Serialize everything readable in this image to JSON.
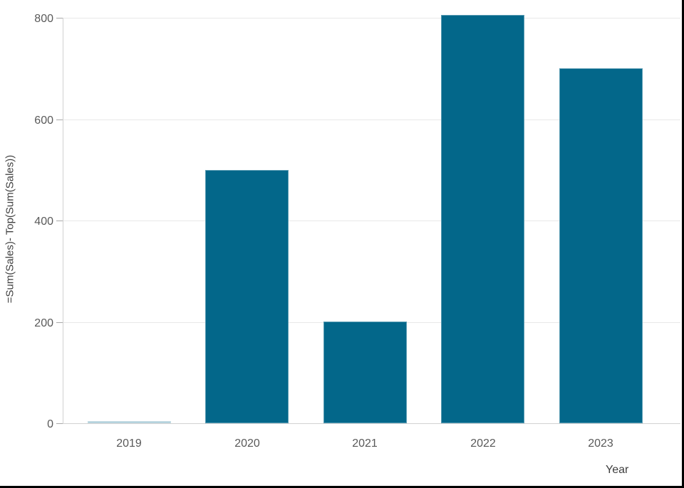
{
  "chart_data": {
    "type": "bar",
    "categories": [
      "2019",
      "2020",
      "2021",
      "2022",
      "2023"
    ],
    "values": [
      0,
      500,
      200,
      805,
      700
    ],
    "title": "",
    "xlabel": "Year",
    "ylabel": "=Sum(Sales)- Top(Sum(Sales))",
    "ylim": [
      0,
      820
    ],
    "yticks": [
      0,
      200,
      400,
      600,
      800
    ],
    "grid": true,
    "legend": "none",
    "colors": {
      "bar": "#03678a",
      "zero_bar": "rgba(3,103,138,0.35)",
      "gridline": "#e8e8e8",
      "baseline": "#d2d2d2",
      "axis_line": "#d2d2d2",
      "tick_mark": "#a9a9a9",
      "tick_label": "#595959",
      "axis_title": "#404040",
      "frame_border": "#000000"
    }
  }
}
